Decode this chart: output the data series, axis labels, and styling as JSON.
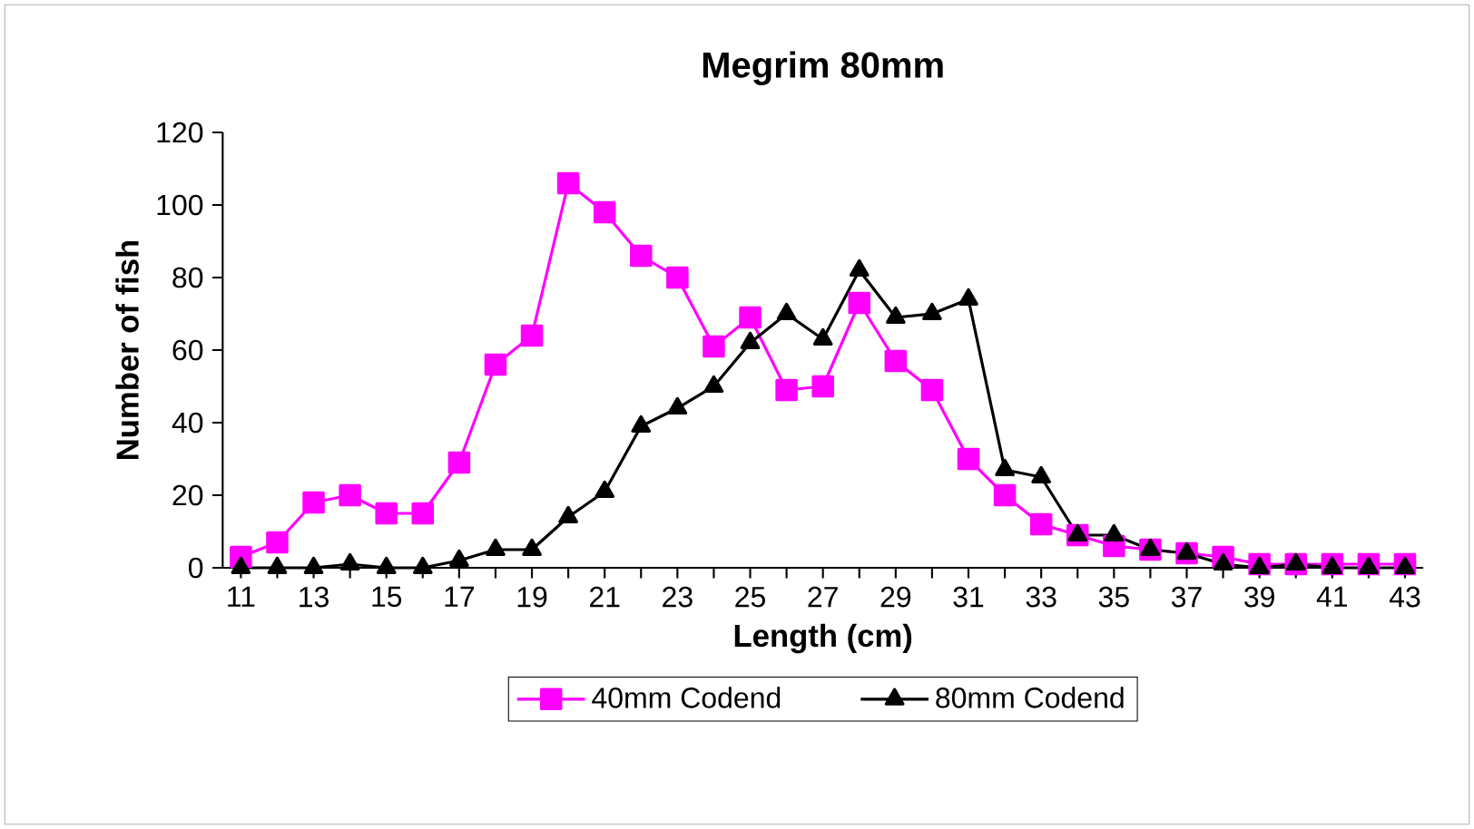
{
  "chart_data": {
    "type": "line",
    "title": "Megrim 80mm",
    "xlabel": "Length (cm)",
    "ylabel": "Number of fish",
    "categories": [
      "11",
      null,
      "13",
      null,
      "15",
      null,
      "17",
      null,
      "19",
      null,
      "21",
      null,
      "23",
      null,
      "25",
      null,
      "27",
      null,
      "29",
      null,
      "31",
      null,
      "33",
      null,
      "35",
      null,
      "37",
      null,
      "39",
      null,
      "41",
      null,
      "43"
    ],
    "ylim": [
      0,
      120
    ],
    "yticks": [
      0,
      20,
      40,
      60,
      80,
      100,
      120
    ],
    "grid": false,
    "legend": "bottom",
    "series": [
      {
        "name": "40mm Codend",
        "color": "#ff00ff",
        "marker": "square",
        "values": [
          3,
          7,
          18,
          20,
          15,
          15,
          29,
          56,
          64,
          106,
          98,
          86,
          80,
          61,
          69,
          49,
          50,
          73,
          57,
          49,
          30,
          20,
          12,
          9,
          6,
          5,
          4,
          3,
          1,
          1,
          1,
          1,
          1
        ]
      },
      {
        "name": "80mm Codend",
        "color": "#000000",
        "marker": "triangle",
        "values": [
          0,
          0,
          0,
          1,
          0,
          0,
          2,
          5,
          5,
          14,
          21,
          39,
          44,
          50,
          62,
          70,
          63,
          82,
          69,
          70,
          74,
          27,
          25,
          9,
          9,
          5,
          4,
          1,
          0,
          1,
          0,
          0,
          0
        ]
      }
    ]
  }
}
